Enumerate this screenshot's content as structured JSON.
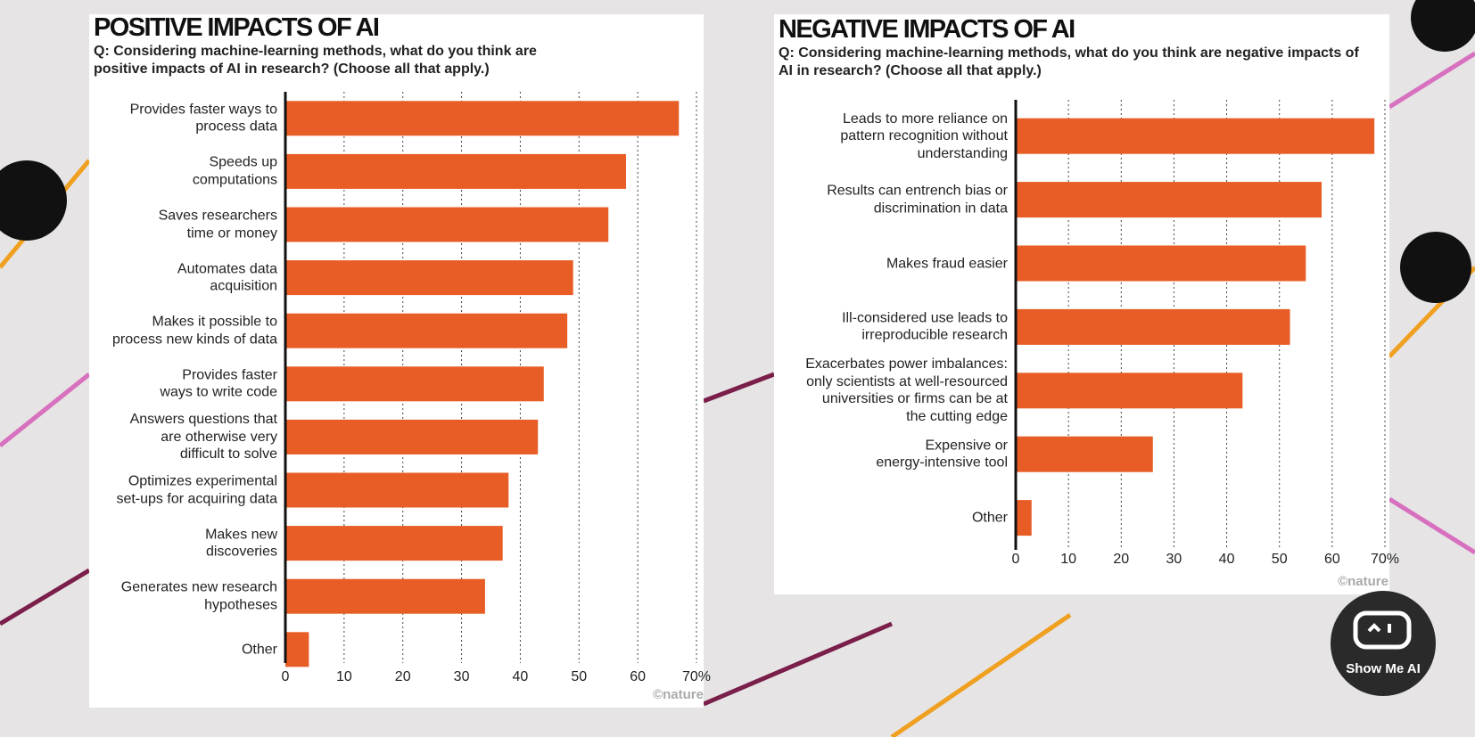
{
  "chart_data": [
    {
      "type": "bar",
      "orientation": "horizontal",
      "title": "POSITIVE IMPACTS OF AI",
      "subtitle": "Q: Considering machine-learning methods, what do you think are\npositive impacts of AI in research? (Choose all that apply.)",
      "categories": [
        "Provides faster ways to\nprocess data",
        "Speeds up\ncomputations",
        "Saves researchers\ntime or money",
        "Automates data\nacquisition",
        "Makes it possible to\nprocess new kinds of data",
        "Provides faster\nways to write code",
        "Answers questions that\nare otherwise very\ndifficult to solve",
        "Optimizes experimental\nset-ups for acquiring data",
        "Makes new\ndiscoveries",
        "Generates new research\nhypotheses",
        "Other"
      ],
      "values": [
        67,
        58,
        55,
        49,
        48,
        44,
        43,
        38,
        37,
        34,
        4
      ],
      "color": "#e85d26",
      "xlim": [
        0,
        70
      ],
      "xticks": [
        0,
        10,
        20,
        30,
        40,
        50,
        60,
        {
          "value": 70,
          "label": "70%"
        }
      ],
      "grid": true,
      "source": "©nature"
    },
    {
      "type": "bar",
      "orientation": "horizontal",
      "title": "NEGATIVE IMPACTS OF AI",
      "subtitle": "Q: Considering machine-learning methods, what do you think are negative impacts of\nAI in research? (Choose all that apply.)",
      "categories": [
        "Leads to more reliance on\npattern recognition without\nunderstanding",
        "Results can entrench bias or\ndiscrimination in data",
        "Makes fraud easier",
        "Ill-considered use leads to\nirreproducible research",
        "Exacerbates power imbalances:\nonly scientists at well-resourced\nuniversities or firms can be at\nthe cutting edge",
        "Expensive or\nenergy-intensive tool",
        "Other"
      ],
      "values": [
        68,
        58,
        55,
        52,
        43,
        26,
        3
      ],
      "color": "#e85d26",
      "xlim": [
        0,
        70
      ],
      "xticks": [
        0,
        10,
        20,
        30,
        40,
        50,
        60,
        {
          "value": 70,
          "label": "70%"
        }
      ],
      "grid": true,
      "source": "©nature"
    }
  ],
  "watermark": "Show Me AI"
}
